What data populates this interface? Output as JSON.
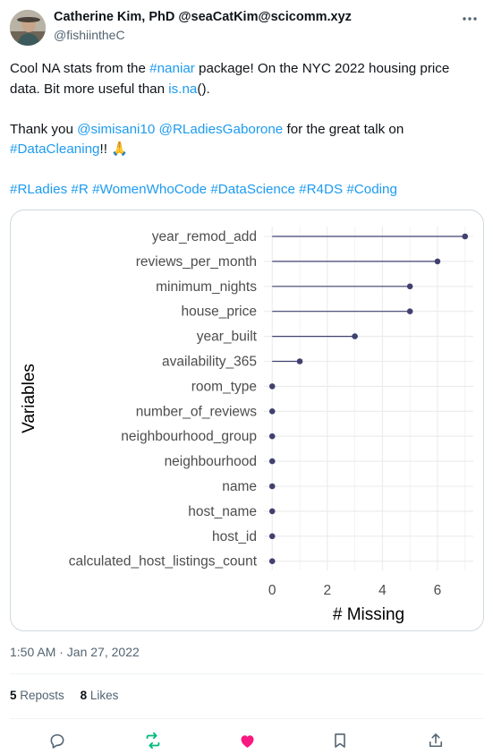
{
  "tweet": {
    "author_name": "Catherine Kim, PhD",
    "author_handle_inline": "@seaCatKim@scicomm.xyz",
    "author_handle": "@fishiintheC",
    "text": {
      "line1_a": "Cool NA stats from the ",
      "line1_link": "#naniar",
      "line1_b": " package! On the NYC 2022 housing price data. Bit more useful than ",
      "line1_link2": "is.na",
      "line1_c": "().",
      "line2_a": "Thank you ",
      "line2_link1": "@simisani10",
      "line2_sp": " ",
      "line2_link2": "@RLadiesGaborone",
      "line2_b": " for the great talk on ",
      "line2_link3": "#DataCleaning",
      "line2_c": "!! 🙏",
      "hashtags": [
        "#RLadies",
        "#R",
        "#WomenWhoCode",
        "#DataScience",
        "#R4DS",
        "#Coding"
      ]
    },
    "timestamp": "1:50 AM · Jan 27, 2022",
    "reposts_count": "5",
    "reposts_label": "Reposts",
    "likes_count": "8",
    "likes_label": "Likes"
  },
  "icons": {
    "more": "more-dots-icon",
    "reply": "reply-icon",
    "repost": "repost-icon",
    "like": "heart-icon",
    "bookmark": "bookmark-icon",
    "share": "share-icon"
  },
  "colors": {
    "link": "#1d9bf0",
    "lollipop": "#414170",
    "like_active": "#f91880",
    "repost_active": "#00ba7c"
  },
  "chart_data": {
    "type": "lollipop",
    "xlabel": "# Missing",
    "ylabel": "Variables",
    "xticks": [
      0,
      2,
      4,
      6
    ],
    "xlim": [
      -0.3,
      7.3
    ],
    "grid": true,
    "categories": [
      "year_remod_add",
      "reviews_per_month",
      "minimum_nights",
      "house_price",
      "year_built",
      "availability_365",
      "room_type",
      "number_of_reviews",
      "neighbourhood_group",
      "neighbourhood",
      "name",
      "host_name",
      "host_id",
      "calculated_host_listings_count"
    ],
    "values": [
      7,
      6,
      5,
      5,
      3,
      1,
      0,
      0,
      0,
      0,
      0,
      0,
      0,
      0
    ]
  }
}
